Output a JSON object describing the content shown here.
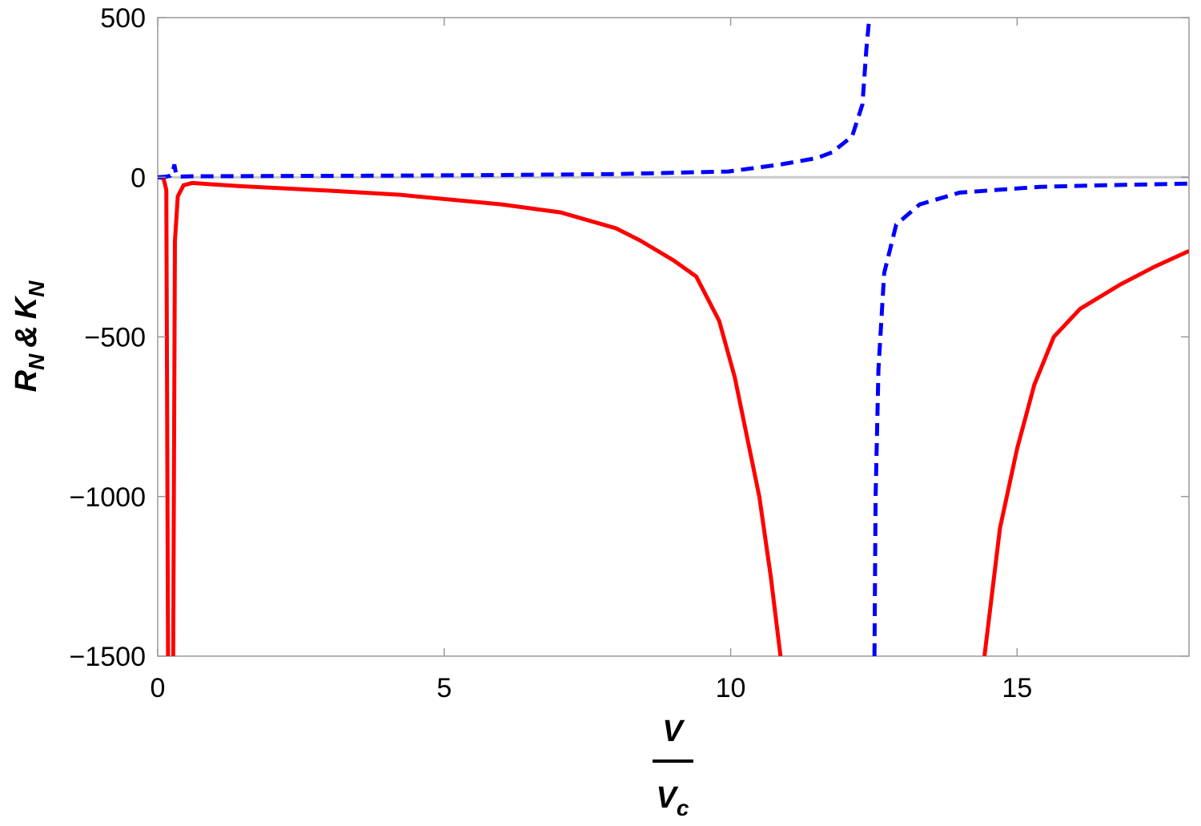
{
  "chart_data": {
    "type": "line",
    "xlabel": {
      "numerator": "V",
      "denominator": "V",
      "denominator_sub": "c"
    },
    "ylabel": {
      "r": "R",
      "r_sub": "N",
      "and": "&",
      "k": "K",
      "k_sub": "N"
    },
    "xlim": [
      0,
      18
    ],
    "xticks": [
      0,
      5,
      10,
      15
    ],
    "ylim": [
      -1500,
      500
    ],
    "yticks": [
      {
        "value": -1500,
        "label": "−1500"
      },
      {
        "value": -1000,
        "label": "−1000"
      },
      {
        "value": -500,
        "label": "−500"
      },
      0,
      500
    ],
    "series": [
      {
        "color": "#ff0000",
        "line_style": "solid",
        "x": [
          0,
          0.1,
          0.15,
          0.18,
          0.19,
          0.26,
          0.27,
          0.3,
          0.35,
          0.45,
          0.6,
          1.44,
          3,
          4.23,
          6,
          7.03,
          8,
          8.42,
          9,
          9.4,
          9.8,
          10.07,
          10.5,
          10.7,
          10.87,
          10.9,
          14.4,
          14.43,
          14.7,
          15,
          15.3,
          15.64,
          16.1,
          16.8,
          17.4,
          18
        ],
        "values": [
          0,
          -3,
          -40,
          -1500,
          null,
          null,
          -1500,
          -200,
          -60,
          -25,
          -18,
          -28,
          -42,
          -55,
          -85,
          -110,
          -160,
          -198,
          -260,
          -311,
          -450,
          -625,
          -1000,
          -1250,
          -1500,
          null,
          null,
          -1500,
          -1100,
          -850,
          -650,
          -500,
          -412,
          -336,
          -280,
          -231
        ]
      },
      {
        "color": "#0000ff",
        "line_style": "dashed",
        "x": [
          0,
          0.15,
          0.22,
          0.26,
          0.29,
          0.32,
          0.38,
          0.6,
          2,
          4,
          6,
          8,
          9.96,
          10.87,
          11.5,
          11.77,
          12.12,
          12.3,
          12.37,
          12.42,
          12.45,
          12.5,
          12.51,
          12.53,
          12.58,
          12.68,
          12.89,
          13.3,
          14,
          15.4,
          16.5,
          18
        ],
        "values": [
          0,
          2,
          5,
          15,
          40,
          10,
          2,
          3,
          4,
          5,
          7,
          10,
          18,
          40,
          60,
          78,
          128,
          228,
          404,
          500,
          null,
          null,
          -1500,
          -1000,
          -600,
          -300,
          -148,
          -85,
          -48,
          -30,
          -25,
          -20
        ]
      }
    ]
  }
}
